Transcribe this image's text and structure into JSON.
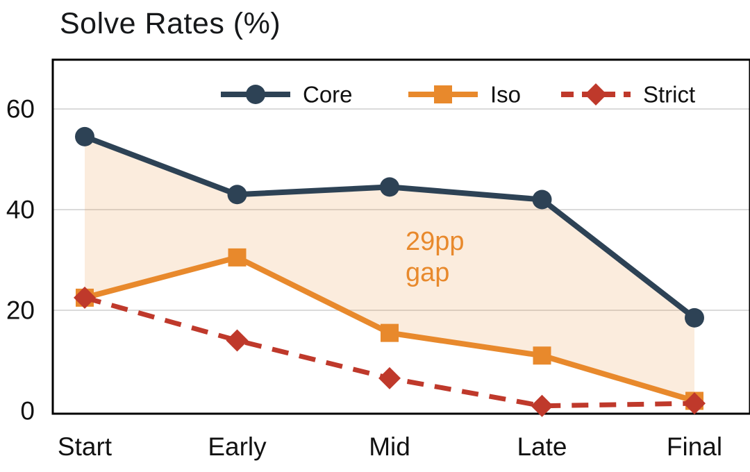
{
  "title": "Solve Rates (%)",
  "annotation": {
    "line1": "29pp",
    "line2": "gap"
  },
  "chart_data": {
    "type": "line",
    "title": "Solve Rates (%)",
    "categories": [
      "Start",
      "Early",
      "Mid",
      "Late",
      "Final"
    ],
    "series": [
      {
        "name": "Core",
        "color": "#2d4255",
        "marker": "circle",
        "dashed": false,
        "values": [
          54.5,
          43,
          44.5,
          42,
          18.5
        ]
      },
      {
        "name": "Iso",
        "color": "#e8892c",
        "marker": "square",
        "dashed": false,
        "values": [
          22.5,
          30.5,
          15.5,
          11,
          2
        ]
      },
      {
        "name": "Strict",
        "color": "#bf392b",
        "marker": "diamond",
        "dashed": true,
        "values": [
          22.5,
          14,
          6.5,
          1,
          1.5
        ]
      }
    ],
    "fill_between": {
      "upper": "Core",
      "lower": "Iso",
      "color": "#e8892c",
      "opacity": 0.16
    },
    "yticks": [
      0,
      20,
      40,
      60
    ],
    "ylim": [
      0,
      70
    ],
    "xlabel": "",
    "ylabel": "",
    "grid": "horizontal",
    "legend_position": "top-center",
    "annotation_text": "29pp gap"
  }
}
